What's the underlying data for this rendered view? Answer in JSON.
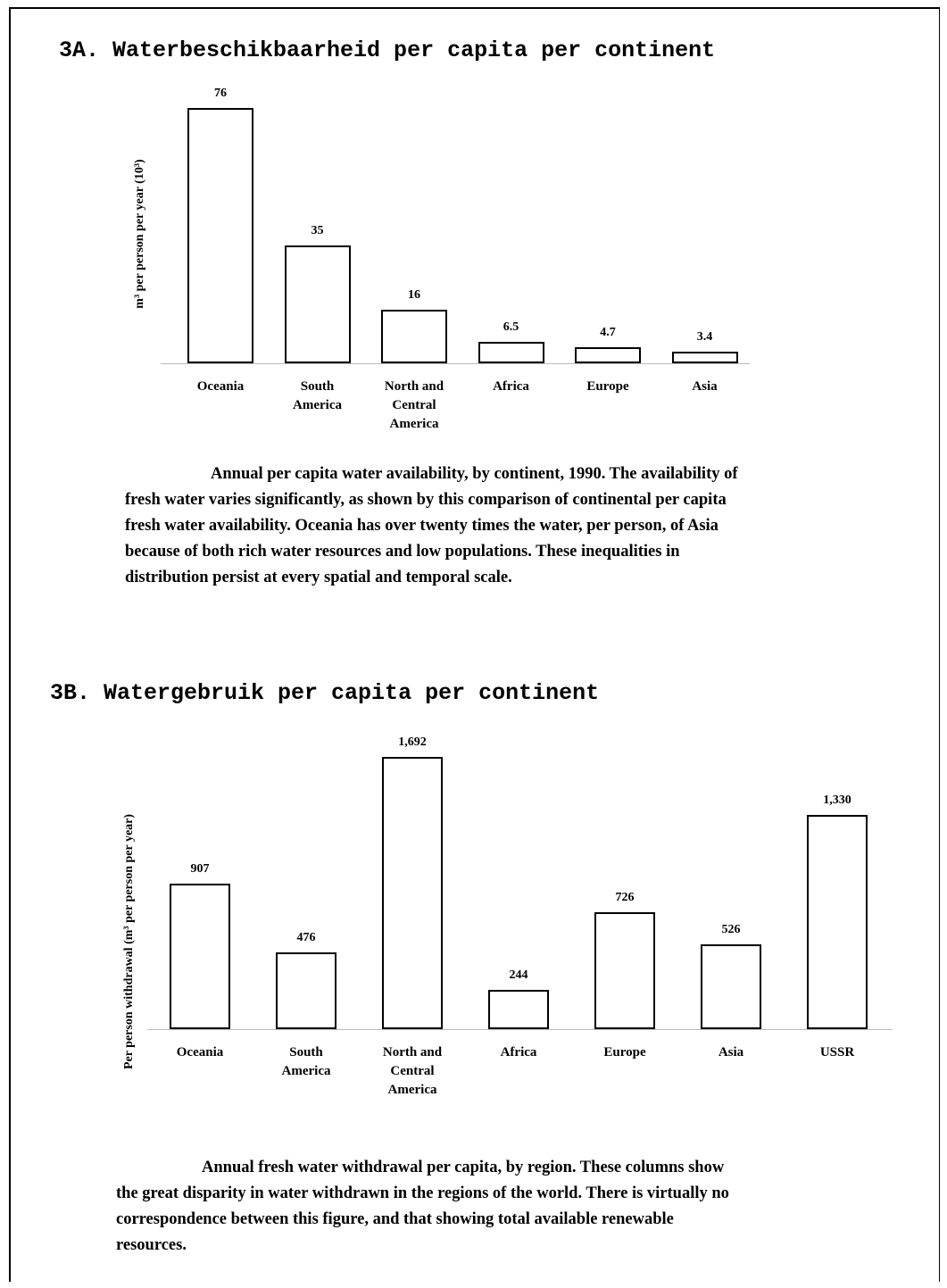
{
  "chart_data": [
    {
      "type": "bar",
      "title": "3A. Waterbeschikbaarheid per capita per continent",
      "y_label": "m³ per person per year (10³)",
      "categories": [
        "Oceania",
        "South America",
        "North and Central America",
        "Africa",
        "Europe",
        "Asia"
      ],
      "values": [
        76,
        35,
        16,
        6.5,
        4.7,
        3.4
      ],
      "caption": "Annual per capita water availability, by continent, 1990. The availability of fresh water varies significantly, as shown by this comparison of continental per capita fresh water availability. Oceania has over twenty times the water, per person, of Asia because of both rich water resources and low populations. These inequalities in distribution persist at every spatial and temporal scale."
    },
    {
      "type": "bar",
      "title": "3B. Watergebruik per capita per continent",
      "y_label": "Per person withdrawal (m³ per person per year)",
      "categories": [
        "Oceania",
        "South America",
        "North and Central America",
        "Africa",
        "Europe",
        "Asia",
        "USSR"
      ],
      "values": [
        907,
        476,
        1692,
        244,
        726,
        526,
        1330
      ],
      "value_labels": [
        "907",
        "476",
        "1,692",
        "244",
        "726",
        "526",
        "1,330"
      ],
      "caption": "Annual fresh water withdrawal per capita, by region. These columns show the great disparity in water withdrawn in the regions of the world. There is virtually no correspondence between this figure, and that showing total available renewable resources."
    }
  ]
}
